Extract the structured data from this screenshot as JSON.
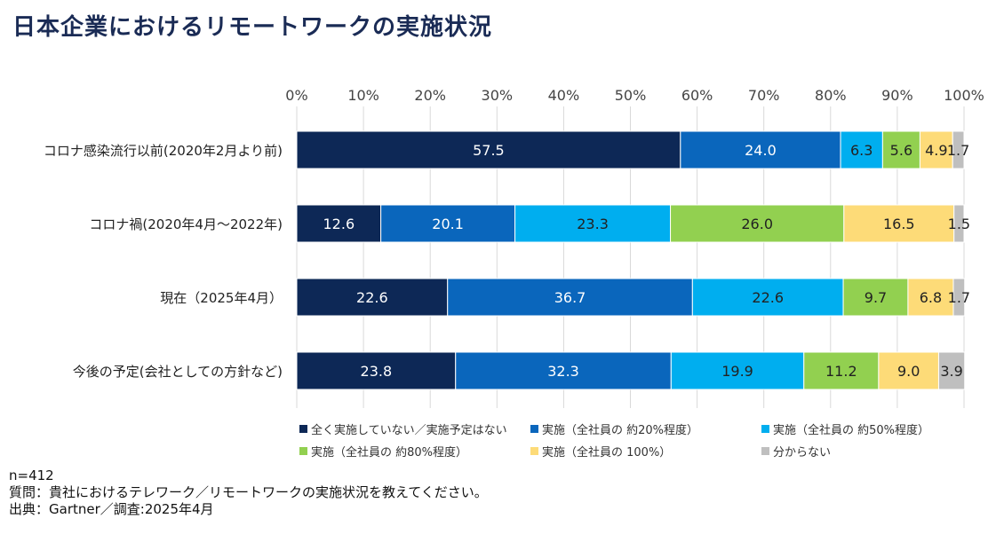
{
  "title": "日本企業におけるリモートワークの実施状況",
  "chart_data": {
    "type": "bar",
    "orientation": "horizontal",
    "stacked": true,
    "percent_stacked": true,
    "categories": [
      "コロナ感染流行以前(2020年2月より前)",
      "コロナ禍(2020年4月〜2022年)",
      "現在（2025年4月）",
      "今後の予定(会社としての方針など)"
    ],
    "x_ticks": [
      "0%",
      "10%",
      "20%",
      "30%",
      "40%",
      "50%",
      "60%",
      "70%",
      "80%",
      "90%",
      "100%"
    ],
    "xlim": [
      0,
      100
    ],
    "x_axis_position": "top",
    "grid": true,
    "legend_position": "bottom",
    "series": [
      {
        "name": "全く実施していない／実施予定はない",
        "color": "#0d2856",
        "label_color": "#ffffff",
        "values": [
          57.5,
          12.6,
          22.6,
          23.8
        ]
      },
      {
        "name": "実施（全社員の 約20%程度）",
        "color": "#0a66bc",
        "label_color": "#ffffff",
        "values": [
          24.0,
          20.1,
          36.7,
          32.3
        ]
      },
      {
        "name": "実施（全社員の 約50%程度）",
        "color": "#00aeef",
        "label_color": "#222222",
        "values": [
          6.3,
          23.3,
          22.6,
          19.9
        ]
      },
      {
        "name": "実施（全社員の 約80%程度）",
        "color": "#92d050",
        "label_color": "#222222",
        "values": [
          5.6,
          26.0,
          9.7,
          11.2
        ]
      },
      {
        "name": "実施（全社員の 100%）",
        "color": "#fddb78",
        "label_color": "#222222",
        "values": [
          4.9,
          16.5,
          6.8,
          9.0
        ]
      },
      {
        "name": "分からない",
        "color": "#bfbfbf",
        "label_color": "#222222",
        "values": [
          1.7,
          1.5,
          1.7,
          3.9
        ]
      }
    ]
  },
  "notes": {
    "n": "n=412",
    "question": "質問：貴社におけるテレワーク／リモートワークの実施状況を教えてください。",
    "source": "出典：Gartner／調査:2025年4月"
  }
}
